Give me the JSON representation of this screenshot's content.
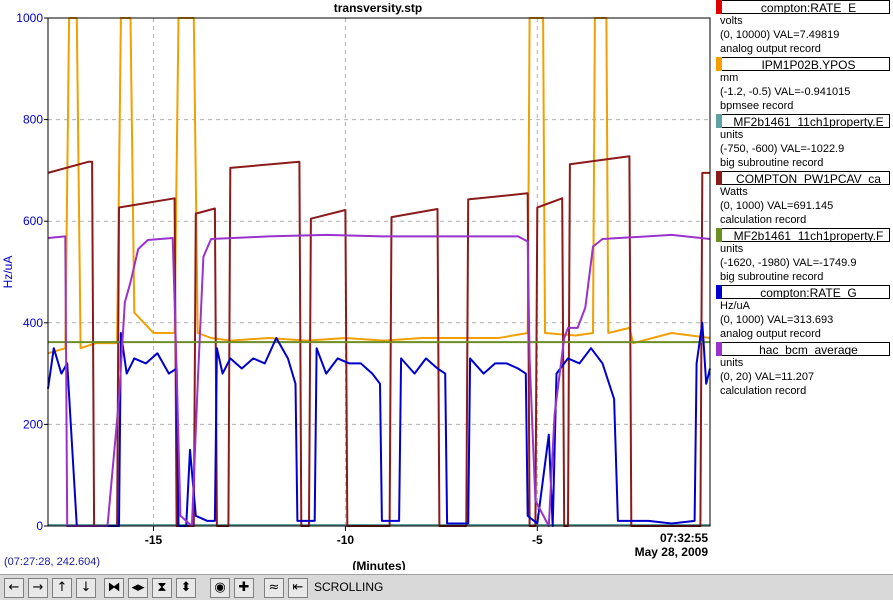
{
  "chart_data": {
    "type": "line",
    "title": "transversity.stp",
    "xlabel": "(Minutes)",
    "ylabel": "Hz/uA",
    "xlim": [
      -17.75,
      -0.5
    ],
    "ylim": [
      0,
      1000
    ],
    "x_ticks": [
      -15,
      -10,
      -5
    ],
    "y_ticks": [
      0,
      200,
      400,
      600,
      800,
      1000
    ],
    "grid": true,
    "time_label": "07:32:55",
    "date_label": "May 28, 2009",
    "series": [
      {
        "name": "compton:RATE_E",
        "color": "#e00000",
        "points": [
          [
            -17.75,
            2
          ],
          [
            -0.5,
            2
          ]
        ]
      },
      {
        "name": "IPM1P02B.YPOS",
        "color": "#f0a000",
        "points": [
          [
            -17.75,
            340
          ],
          [
            -17.3,
            350
          ],
          [
            -17.2,
            1000
          ],
          [
            -17.0,
            1000
          ],
          [
            -16.9,
            350
          ],
          [
            -16.5,
            360
          ],
          [
            -15.95,
            360
          ],
          [
            -15.85,
            1000
          ],
          [
            -15.6,
            1000
          ],
          [
            -15.5,
            420
          ],
          [
            -15.0,
            380
          ],
          [
            -14.45,
            380
          ],
          [
            -14.35,
            1000
          ],
          [
            -13.95,
            1000
          ],
          [
            -13.85,
            380
          ],
          [
            -13.5,
            370
          ],
          [
            -13.0,
            365
          ],
          [
            -12.0,
            370
          ],
          [
            -11.0,
            365
          ],
          [
            -10.0,
            370
          ],
          [
            -9.0,
            365
          ],
          [
            -8.0,
            370
          ],
          [
            -7.0,
            370
          ],
          [
            -6.0,
            370
          ],
          [
            -5.25,
            380
          ],
          [
            -5.2,
            1000
          ],
          [
            -4.85,
            1000
          ],
          [
            -4.8,
            380
          ],
          [
            -4.0,
            375
          ],
          [
            -3.55,
            380
          ],
          [
            -3.5,
            1000
          ],
          [
            -3.2,
            1000
          ],
          [
            -3.15,
            380
          ],
          [
            -2.6,
            390
          ],
          [
            -2.5,
            360
          ],
          [
            -1.5,
            380
          ],
          [
            -0.5,
            370
          ]
        ]
      },
      {
        "name": "MF2b1461_11ch1property.E",
        "color": "#5fa0a0",
        "points": [
          [
            -17.75,
            2
          ],
          [
            -0.5,
            2
          ]
        ]
      },
      {
        "name": "COMPTON_PW1PCAV_ca",
        "color": "#8b1a1a",
        "points": [
          [
            -17.75,
            695
          ],
          [
            -16.7,
            717
          ],
          [
            -16.6,
            717
          ],
          [
            -16.55,
            0
          ],
          [
            -15.95,
            0
          ],
          [
            -15.9,
            627
          ],
          [
            -14.45,
            645
          ],
          [
            -14.4,
            0
          ],
          [
            -13.95,
            0
          ],
          [
            -13.9,
            615
          ],
          [
            -13.4,
            625
          ],
          [
            -13.35,
            0
          ],
          [
            -13.05,
            0
          ],
          [
            -13.0,
            705
          ],
          [
            -11.2,
            717
          ],
          [
            -11.15,
            0
          ],
          [
            -10.95,
            0
          ],
          [
            -10.9,
            605
          ],
          [
            -10.0,
            622
          ],
          [
            -9.95,
            0
          ],
          [
            -8.85,
            0
          ],
          [
            -8.8,
            608
          ],
          [
            -7.6,
            624
          ],
          [
            -7.55,
            0
          ],
          [
            -6.85,
            0
          ],
          [
            -6.8,
            643
          ],
          [
            -5.25,
            655
          ],
          [
            -5.2,
            0
          ],
          [
            -5.05,
            0
          ],
          [
            -5.0,
            627
          ],
          [
            -4.35,
            645
          ],
          [
            -4.3,
            0
          ],
          [
            -4.2,
            0
          ],
          [
            -4.15,
            712
          ],
          [
            -2.6,
            728
          ],
          [
            -2.55,
            0
          ],
          [
            -0.75,
            0
          ],
          [
            -0.7,
            695
          ],
          [
            -0.5,
            695
          ]
        ]
      },
      {
        "name": "MF2b1461_11ch1property.F",
        "color": "#6b8e23",
        "points": [
          [
            -17.75,
            362
          ],
          [
            -0.5,
            362
          ]
        ]
      },
      {
        "name": "compton:RATE_G",
        "color": "#0000cc",
        "points": [
          [
            -17.75,
            270
          ],
          [
            -17.6,
            350
          ],
          [
            -17.4,
            300
          ],
          [
            -17.25,
            320
          ],
          [
            -17.1,
            130
          ],
          [
            -17.0,
            0
          ],
          [
            -15.9,
            0
          ],
          [
            -15.85,
            380
          ],
          [
            -15.7,
            300
          ],
          [
            -15.5,
            330
          ],
          [
            -15.2,
            320
          ],
          [
            -14.9,
            340
          ],
          [
            -14.6,
            300
          ],
          [
            -14.4,
            310
          ],
          [
            -14.35,
            0
          ],
          [
            -14.15,
            0
          ],
          [
            -14.05,
            150
          ],
          [
            -13.9,
            20
          ],
          [
            -13.6,
            10
          ],
          [
            -13.4,
            10
          ],
          [
            -13.35,
            350
          ],
          [
            -13.2,
            300
          ],
          [
            -13.0,
            330
          ],
          [
            -12.7,
            310
          ],
          [
            -12.4,
            330
          ],
          [
            -12.1,
            320
          ],
          [
            -11.8,
            370
          ],
          [
            -11.5,
            330
          ],
          [
            -11.3,
            280
          ],
          [
            -11.25,
            10
          ],
          [
            -10.8,
            10
          ],
          [
            -10.75,
            350
          ],
          [
            -10.5,
            300
          ],
          [
            -10.2,
            330
          ],
          [
            -9.9,
            320
          ],
          [
            -9.6,
            320
          ],
          [
            -9.3,
            300
          ],
          [
            -9.1,
            280
          ],
          [
            -9.05,
            10
          ],
          [
            -8.6,
            10
          ],
          [
            -8.55,
            330
          ],
          [
            -8.2,
            300
          ],
          [
            -7.9,
            330
          ],
          [
            -7.6,
            310
          ],
          [
            -7.4,
            300
          ],
          [
            -7.35,
            5
          ],
          [
            -6.8,
            5
          ],
          [
            -6.75,
            330
          ],
          [
            -6.4,
            300
          ],
          [
            -6.1,
            320
          ],
          [
            -5.8,
            320
          ],
          [
            -5.5,
            310
          ],
          [
            -5.3,
            300
          ],
          [
            -5.25,
            20
          ],
          [
            -5.0,
            5
          ],
          [
            -4.7,
            180
          ],
          [
            -4.6,
            0
          ],
          [
            -4.5,
            300
          ],
          [
            -4.2,
            330
          ],
          [
            -3.9,
            320
          ],
          [
            -3.6,
            350
          ],
          [
            -3.3,
            320
          ],
          [
            -3.0,
            250
          ],
          [
            -2.9,
            10
          ],
          [
            -2.1,
            10
          ],
          [
            -1.5,
            5
          ],
          [
            -0.9,
            10
          ],
          [
            -0.85,
            320
          ],
          [
            -0.7,
            400
          ],
          [
            -0.6,
            280
          ],
          [
            -0.5,
            310
          ]
        ]
      },
      {
        "name": "hac_bcm_average",
        "color": "#9933cc",
        "points": [
          [
            -17.75,
            567
          ],
          [
            -17.3,
            570
          ],
          [
            -17.25,
            0
          ],
          [
            -16.2,
            0
          ],
          [
            -15.9,
            250
          ],
          [
            -15.75,
            440
          ],
          [
            -15.6,
            480
          ],
          [
            -15.4,
            545
          ],
          [
            -15.15,
            563
          ],
          [
            -14.5,
            567
          ],
          [
            -14.4,
            310
          ],
          [
            -14.3,
            20
          ],
          [
            -14.0,
            0
          ],
          [
            -13.85,
            280
          ],
          [
            -13.7,
            530
          ],
          [
            -13.5,
            565
          ],
          [
            -12.0,
            570
          ],
          [
            -10.5,
            573
          ],
          [
            -9.0,
            570
          ],
          [
            -7.5,
            570
          ],
          [
            -5.5,
            570
          ],
          [
            -5.25,
            560
          ],
          [
            -5.2,
            330
          ],
          [
            -5.05,
            50
          ],
          [
            -4.7,
            0
          ],
          [
            -4.55,
            220
          ],
          [
            -4.3,
            370
          ],
          [
            -4.2,
            390
          ],
          [
            -3.95,
            390
          ],
          [
            -3.75,
            430
          ],
          [
            -3.55,
            550
          ],
          [
            -3.3,
            565
          ],
          [
            -1.5,
            573
          ],
          [
            -0.5,
            565
          ]
        ]
      }
    ]
  },
  "legend": [
    {
      "name": "compton:RATE_E",
      "color": "#e00000",
      "units": "volts",
      "range": "(0, 10000) VAL=7.49819",
      "type": "analog output record"
    },
    {
      "name": "IPM1P02B.YPOS",
      "color": "#f0a000",
      "units": "mm",
      "range": "(-1.2, -0.5) VAL=-0.941015",
      "type": "bpmsee record"
    },
    {
      "name": "MF2b1461_11ch1property.E",
      "color": "#5fa0a0",
      "units": "units",
      "range": "(-750, -600) VAL=-1022.9",
      "type": "big subroutine record"
    },
    {
      "name": "COMPTON_PW1PCAV_ca",
      "color": "#8b1a1a",
      "units": "Watts",
      "range": "(0, 1000) VAL=691.145",
      "type": "calculation record"
    },
    {
      "name": "MF2b1461_11ch1property.F",
      "color": "#6b8e23",
      "units": "units",
      "range": "(-1620, -1980) VAL=-1749.9",
      "type": "big subroutine record"
    },
    {
      "name": "compton:RATE_G",
      "color": "#0000cc",
      "units": "Hz/uA",
      "range": "(0, 1000) VAL=313.693",
      "type": "analog output record"
    },
    {
      "name": "hac_bcm_average",
      "color": "#9933cc",
      "units": "units",
      "range": "(0, 20) VAL=11.207",
      "type": "calculation record"
    }
  ],
  "cursor_readout": "(07:27:28, 242.604)",
  "toolbar": {
    "buttons": [
      {
        "name": "scroll-left-button",
        "glyph": "←"
      },
      {
        "name": "scroll-right-button",
        "glyph": "→"
      },
      {
        "name": "scroll-up-button",
        "glyph": "↑"
      },
      {
        "name": "scroll-down-button",
        "glyph": "↓"
      },
      {
        "name": "zoom-in-horizontal-button",
        "glyph": "⧓"
      },
      {
        "name": "zoom-out-horizontal-button",
        "glyph": "◂▸"
      },
      {
        "name": "zoom-in-vertical-button",
        "glyph": "⧗"
      },
      {
        "name": "zoom-out-vertical-button",
        "glyph": "⬍"
      },
      {
        "name": "auto-scale-button",
        "glyph": "◉"
      },
      {
        "name": "reset-button",
        "glyph": "✚"
      },
      {
        "name": "pan-button",
        "glyph": "≈"
      },
      {
        "name": "scrolling-toggle-button",
        "glyph": "⇤"
      }
    ],
    "mode": "SCROLLING"
  }
}
